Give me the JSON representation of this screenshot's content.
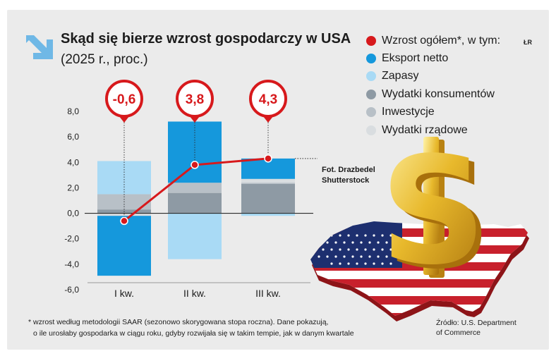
{
  "title": "Skąd się bierze wzrost gospodarczy w USA",
  "subtitle": "(2025 r., proc.)",
  "credit_tag": "ŁR",
  "photo_credit": [
    "Fot. Drazbedel",
    "Shutterstock"
  ],
  "footnote": [
    "* wzrost według metodologii SAAR (sezonowo skorygowana stopa roczna). Dane pokazują,",
    "o ile urosłaby gospodarka w ciągu roku, gdyby rozwijała się w takim tempie, jak w danym kwartale"
  ],
  "source": [
    "Źródło: U.S. Department",
    "of Commerce"
  ],
  "colors": {
    "total": "#d7191c",
    "net_exports": "#1598dc",
    "inventories": "#a9daf5",
    "consumer": "#8e9aa4",
    "investment": "#b8c0c7",
    "government": "#d9dde0",
    "arrow_icon": "#6fb8e6"
  },
  "icons": [
    "arrow-down-right-icon",
    "map-pin-icon",
    "dollar-sign-icon",
    "us-map-flag"
  ],
  "chart_data": {
    "type": "bar",
    "categories": [
      "I kw.",
      "II kw.",
      "III kw."
    ],
    "ylim": [
      -6,
      8
    ],
    "yticks": [
      "8,0",
      "6,0",
      "4,0",
      "2,0",
      "0,0",
      "-2,0",
      "-4,0",
      "-6,0"
    ],
    "series": [
      {
        "name": "Wzrost ogółem*, w tym:",
        "kind": "line",
        "values": [
          -0.6,
          3.8,
          4.3
        ],
        "labels": [
          "-0,6",
          "3,8",
          "4,3"
        ]
      },
      {
        "name": "Eksport netto",
        "values": [
          -4.7,
          4.8,
          1.6
        ]
      },
      {
        "name": "Zapasy",
        "values": [
          2.6,
          -3.6,
          -0.2
        ]
      },
      {
        "name": "Wydatki konsumentów",
        "values": [
          0.3,
          1.6,
          2.3
        ]
      },
      {
        "name": "Inwestycje",
        "values": [
          1.2,
          0.8,
          0.1
        ]
      },
      {
        "name": "Wydatki rządowe",
        "values": [
          -0.2,
          0.0,
          0.3
        ]
      }
    ]
  }
}
